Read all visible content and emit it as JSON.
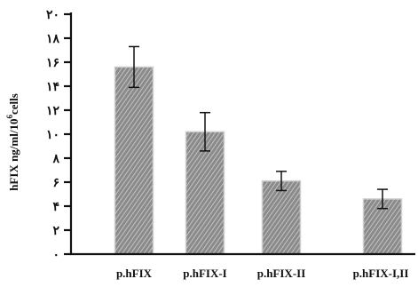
{
  "chart_data": {
    "type": "bar",
    "title": "",
    "xlabel": "",
    "ylabel": "hFIX ng/ml/10",
    "ylabel_sup": "6",
    "ylabel_suffix": "cells",
    "ylim": [
      0,
      20
    ],
    "yticks": [
      0,
      2,
      4,
      6,
      8,
      10,
      12,
      14,
      16,
      18,
      20
    ],
    "ytick_labels": [
      "٠",
      "٢",
      "۴",
      "۶",
      "٨",
      "١٠",
      "١٢",
      "١۴",
      "١۶",
      "١٨",
      "٢٠"
    ],
    "categories": [
      "p.hFIX",
      "p.hFIX-I",
      "p.hFIX-II",
      "p.hFIX-I,II"
    ],
    "values": [
      15.6,
      10.2,
      6.1,
      4.6
    ],
    "errors": [
      1.7,
      1.6,
      0.8,
      0.8
    ],
    "grid": false,
    "bar_fill": "hatched gray",
    "colors": {
      "bar_base": "#8a8a8a",
      "bar_stripe": "#d0d0d0",
      "bar_edge": "#cfcfcf",
      "axis": "#111111"
    }
  }
}
